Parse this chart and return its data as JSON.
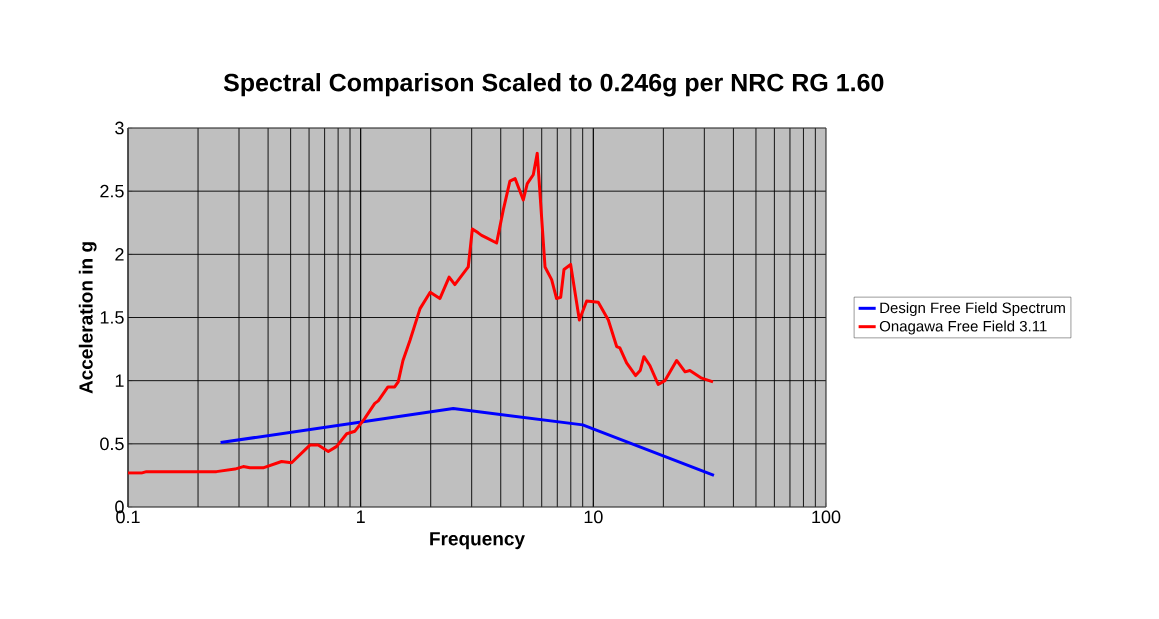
{
  "chart_data": {
    "type": "line",
    "title": "Spectral Comparison Scaled to 0.246g per NRC RG 1.60",
    "xlabel": "Frequency",
    "ylabel": "Acceleration in g",
    "log": "x",
    "xlim": [
      0.1,
      100
    ],
    "xticks": [
      0.1,
      1,
      10,
      100
    ],
    "ylim": [
      0,
      3
    ],
    "yticks": [
      0,
      0.5,
      1,
      1.5,
      2,
      2.5,
      3
    ],
    "grid": true,
    "legend": "right",
    "marker": "none",
    "line_style": "solid",
    "series": [
      {
        "name": "Design Free Field Spectrum",
        "color": "#0000ff",
        "x": [
          0.25,
          2.5,
          9,
          33
        ],
        "values": [
          0.51,
          0.78,
          0.65,
          0.25
        ]
      },
      {
        "name": "Onagawa Free Field 3.11",
        "color": "#ff0000",
        "x": [
          0.1,
          0.115,
          0.12,
          0.24,
          0.288,
          0.313,
          0.334,
          0.381,
          0.457,
          0.505,
          0.605,
          0.657,
          0.726,
          0.789,
          0.871,
          0.945,
          1.04,
          1.15,
          1.19,
          1.31,
          1.4,
          1.45,
          1.52,
          1.63,
          1.8,
          1.99,
          2.19,
          2.4,
          2.54,
          2.9,
          3.02,
          3.2,
          3.31,
          3.48,
          3.84,
          4.1,
          4.38,
          4.61,
          5.0,
          5.2,
          5.52,
          5.74,
          6.2,
          6.62,
          6.95,
          7.24,
          7.48,
          7.99,
          8.71,
          9.36,
          10.5,
          11.6,
          12.6,
          13.0,
          13.9,
          15.2,
          15.9,
          16.5,
          17.5,
          19.0,
          20.3,
          22.8,
          24.8,
          26.0,
          29.2,
          32.7
        ],
        "values": [
          0.27,
          0.27,
          0.28,
          0.28,
          0.3,
          0.32,
          0.31,
          0.31,
          0.36,
          0.35,
          0.49,
          0.49,
          0.44,
          0.48,
          0.58,
          0.6,
          0.7,
          0.82,
          0.84,
          0.95,
          0.95,
          0.99,
          1.16,
          1.32,
          1.57,
          1.7,
          1.65,
          1.82,
          1.76,
          1.9,
          2.2,
          2.17,
          2.15,
          2.13,
          2.09,
          2.35,
          2.58,
          2.6,
          2.43,
          2.56,
          2.63,
          2.8,
          1.9,
          1.8,
          1.65,
          1.66,
          1.88,
          1.92,
          1.48,
          1.63,
          1.62,
          1.48,
          1.27,
          1.26,
          1.14,
          1.04,
          1.08,
          1.19,
          1.12,
          0.97,
          1.0,
          1.16,
          1.07,
          1.08,
          1.02,
          0.99
        ]
      }
    ]
  }
}
